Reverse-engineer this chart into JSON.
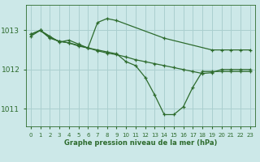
{
  "background_color": "#cce8e8",
  "grid_color": "#aacfcf",
  "line_color": "#2d6b2d",
  "title": "Graphe pression niveau de la mer (hPa)",
  "ylabel_ticks": [
    1011,
    1012,
    1013
  ],
  "xlim": [
    -0.5,
    23.5
  ],
  "ylim": [
    1010.55,
    1013.65
  ],
  "line1": {
    "x": [
      0,
      1,
      2,
      3,
      4,
      5,
      6,
      7,
      8,
      9,
      14,
      19,
      20,
      21,
      22,
      23
    ],
    "y": [
      1012.9,
      1013.0,
      1012.85,
      1012.7,
      1012.75,
      1012.65,
      1012.55,
      1013.2,
      1013.3,
      1013.25,
      1012.8,
      1012.5,
      1012.5,
      1012.5,
      1012.5,
      1012.5
    ]
  },
  "line2": {
    "x": [
      0,
      1,
      2,
      3,
      4,
      5,
      6,
      7,
      8,
      9,
      10,
      11,
      12,
      13,
      14,
      15,
      16,
      17,
      18,
      19,
      20,
      21,
      22,
      23
    ],
    "y": [
      1012.85,
      1013.0,
      1012.8,
      1012.72,
      1012.68,
      1012.6,
      1012.55,
      1012.5,
      1012.45,
      1012.4,
      1012.2,
      1012.1,
      1011.8,
      1011.35,
      1010.85,
      1010.85,
      1011.05,
      1011.55,
      1011.95,
      1011.95,
      1011.95,
      1011.95,
      1011.95,
      1011.95
    ]
  },
  "line3": {
    "x": [
      0,
      1,
      2,
      3,
      4,
      5,
      6,
      7,
      8,
      9,
      10,
      11,
      12,
      13,
      14,
      15,
      16,
      17,
      18,
      19,
      20,
      21,
      22,
      23
    ],
    "y": [
      1012.9,
      1013.0,
      1012.82,
      1012.72,
      1012.68,
      1012.62,
      1012.55,
      1012.48,
      1012.42,
      1012.38,
      1012.32,
      1012.25,
      1012.2,
      1012.15,
      1012.1,
      1012.05,
      1012.0,
      1011.95,
      1011.9,
      1011.92,
      1012.0,
      1012.0,
      1012.0,
      1012.0
    ]
  }
}
